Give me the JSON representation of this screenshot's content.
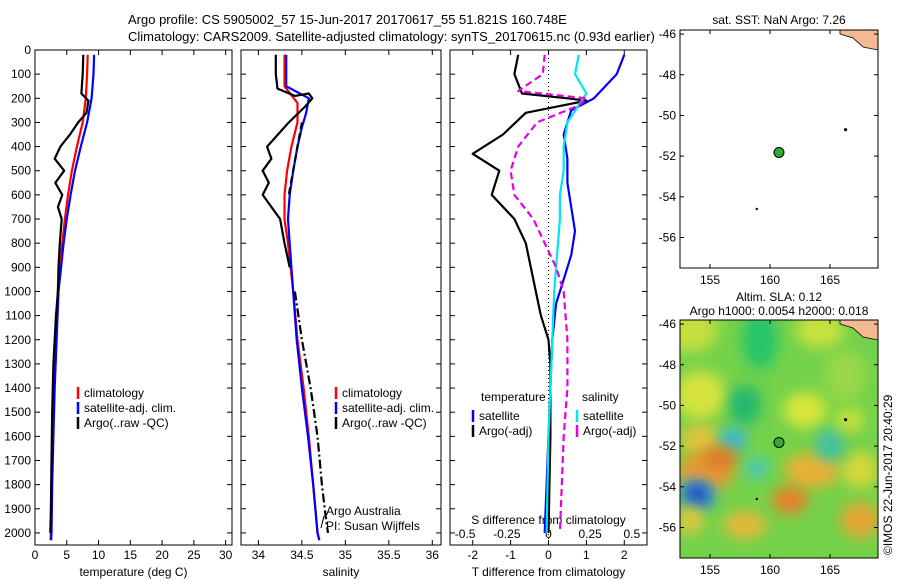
{
  "header": {
    "line1": "Argo profile: CS 5905002_57 15-Jun-2017 20170617_55 51.821S 160.748E",
    "line2": "Climatology: CARS2009. Satellite-adjusted climatology: synTS_20170615.nc (0.93d earlier)"
  },
  "colors": {
    "climatology": "#ff0000",
    "satellite": "#0000ff",
    "argo": "#000000",
    "salinity_satellite": "#00e5ee",
    "salinity_argo": "#e600e6",
    "land": "#f4b990",
    "float_marker": "#33aa33"
  },
  "credit": "©IMOS 22-Jun-2017 20:40:29",
  "chart_data": [
    {
      "id": "temperature",
      "type": "line",
      "xlabel": "temperature (deg C)",
      "xlim": [
        0,
        31
      ],
      "ylim": [
        2050,
        0
      ],
      "xticks": [
        "0",
        "5",
        "10",
        "15",
        "20",
        "25",
        "30"
      ],
      "yticks": [
        "0",
        "100",
        "200",
        "300",
        "400",
        "500",
        "600",
        "700",
        "800",
        "900",
        "1000",
        "1100",
        "1200",
        "1300",
        "1400",
        "1500",
        "1600",
        "1700",
        "1800",
        "1900",
        "2000"
      ],
      "legend": [
        "climatology",
        "satellite-adj. clim.",
        "Argo(..raw -QC)"
      ],
      "series": [
        {
          "name": "climatology",
          "style": "solid",
          "points": [
            [
              8.3,
              20
            ],
            [
              8.2,
              100
            ],
            [
              8.0,
              200
            ],
            [
              7.5,
              300
            ],
            [
              6.6,
              400
            ],
            [
              5.8,
              500
            ],
            [
              5.2,
              600
            ],
            [
              4.7,
              700
            ],
            [
              4.3,
              800
            ],
            [
              3.9,
              900
            ],
            [
              3.6,
              1000
            ],
            [
              3.3,
              1200
            ],
            [
              3.0,
              1400
            ],
            [
              2.8,
              1600
            ],
            [
              2.6,
              1800
            ],
            [
              2.5,
              2000
            ],
            [
              2.45,
              2030
            ]
          ]
        },
        {
          "name": "satellite-adj. clim.",
          "style": "solid",
          "points": [
            [
              9.3,
              20
            ],
            [
              9.2,
              100
            ],
            [
              8.9,
              200
            ],
            [
              8.2,
              300
            ],
            [
              7.2,
              400
            ],
            [
              6.3,
              500
            ],
            [
              5.6,
              600
            ],
            [
              5.0,
              700
            ],
            [
              4.5,
              800
            ],
            [
              4.1,
              900
            ],
            [
              3.7,
              1000
            ],
            [
              3.4,
              1200
            ],
            [
              3.1,
              1400
            ],
            [
              2.9,
              1600
            ],
            [
              2.7,
              1800
            ],
            [
              2.6,
              2000
            ],
            [
              2.55,
              2030
            ]
          ]
        },
        {
          "name": "Argo(..raw -QC)",
          "style": "solid",
          "points": [
            [
              7.6,
              20
            ],
            [
              7.5,
              100
            ],
            [
              7.3,
              180
            ],
            [
              8.4,
              210
            ],
            [
              8.1,
              260
            ],
            [
              6.8,
              300
            ],
            [
              5.5,
              350
            ],
            [
              4.0,
              400
            ],
            [
              3.1,
              450
            ],
            [
              4.6,
              500
            ],
            [
              3.2,
              550
            ],
            [
              4.3,
              600
            ],
            [
              3.6,
              650
            ],
            [
              4.2,
              700
            ],
            [
              3.9,
              800
            ],
            [
              3.7,
              900
            ],
            [
              3.6,
              1000
            ],
            [
              3.3,
              1100
            ],
            [
              3.1,
              1200
            ],
            [
              2.9,
              1300
            ],
            [
              2.8,
              1400
            ],
            [
              2.7,
              1500
            ],
            [
              2.6,
              1700
            ],
            [
              2.5,
              1900
            ],
            [
              2.4,
              2000
            ]
          ]
        }
      ]
    },
    {
      "id": "salinity",
      "type": "line",
      "xlabel": "salinity",
      "xlim": [
        33.8,
        36.1
      ],
      "ylim": [
        2050,
        0
      ],
      "xticks": [
        "34",
        "34.5",
        "35",
        "35.5",
        "36"
      ],
      "legend": [
        "climatology",
        "satellite-adj. clim.",
        "Argo(..raw -QC)"
      ],
      "annotations": [
        "Argo Australia",
        "PI: Susan Wijffels"
      ],
      "series": [
        {
          "name": "climatology",
          "style": "solid",
          "points": [
            [
              34.3,
              20
            ],
            [
              34.3,
              150
            ],
            [
              34.45,
              220
            ],
            [
              34.45,
              300
            ],
            [
              34.38,
              400
            ],
            [
              34.33,
              500
            ],
            [
              34.3,
              600
            ],
            [
              34.3,
              700
            ],
            [
              34.34,
              800
            ],
            [
              34.37,
              900
            ],
            [
              34.4,
              1000
            ],
            [
              34.45,
              1200
            ],
            [
              34.52,
              1400
            ],
            [
              34.58,
              1600
            ],
            [
              34.63,
              1800
            ],
            [
              34.68,
              2000
            ],
            [
              34.7,
              2030
            ]
          ]
        },
        {
          "name": "satellite-adj. clim.",
          "style": "solid",
          "points": [
            [
              34.32,
              20
            ],
            [
              34.32,
              150
            ],
            [
              34.58,
              200
            ],
            [
              34.55,
              260
            ],
            [
              34.5,
              320
            ],
            [
              34.45,
              400
            ],
            [
              34.4,
              500
            ],
            [
              34.36,
              600
            ],
            [
              34.34,
              700
            ],
            [
              34.36,
              800
            ],
            [
              34.38,
              900
            ],
            [
              34.4,
              1000
            ],
            [
              34.44,
              1200
            ],
            [
              34.5,
              1400
            ],
            [
              34.57,
              1600
            ],
            [
              34.63,
              1800
            ],
            [
              34.68,
              2000
            ],
            [
              34.7,
              2030
            ]
          ]
        },
        {
          "name": "Argo(..raw -QC)",
          "style": "solid",
          "points": [
            [
              34.2,
              20
            ],
            [
              34.2,
              100
            ],
            [
              34.22,
              160
            ],
            [
              34.42,
              190
            ],
            [
              34.58,
              180
            ],
            [
              34.62,
              200
            ],
            [
              34.55,
              230
            ],
            [
              34.35,
              300
            ],
            [
              34.1,
              400
            ],
            [
              34.15,
              450
            ],
            [
              34.05,
              500
            ],
            [
              34.12,
              550
            ],
            [
              34.05,
              600
            ],
            [
              34.15,
              650
            ],
            [
              34.25,
              700
            ],
            [
              34.3,
              800
            ],
            [
              34.36,
              900
            ]
          ]
        },
        {
          "name": "Argo(..raw -QC) dash-dot",
          "style": "dashdot",
          "points": [
            [
              34.42,
              1000
            ],
            [
              34.5,
              1200
            ],
            [
              34.6,
              1400
            ],
            [
              34.68,
              1600
            ],
            [
              34.73,
              1800
            ],
            [
              34.78,
              1950
            ],
            [
              34.8,
              2000
            ]
          ]
        },
        {
          "name": "Argo(..raw -QC) dashed",
          "style": "dashed",
          "points": [
            [
              34.5,
              300
            ],
            [
              34.45,
              400
            ],
            [
              34.4,
              500
            ],
            [
              34.35,
              600
            ]
          ]
        }
      ]
    },
    {
      "id": "differences",
      "type": "line",
      "xlabel": "T difference from climatology",
      "xlabel_top": "S difference from climatology",
      "xlim": [
        -2.6,
        2.6
      ],
      "ylim": [
        2050,
        0
      ],
      "xticks": [
        "-2",
        "-1",
        "0",
        "1",
        "2"
      ],
      "xticks_top": [
        "-0.5",
        "-0.25",
        "0",
        "0.25",
        "0.5"
      ],
      "legend_headers": [
        "temperature",
        "salinity"
      ],
      "legend": [
        "satellite",
        "Argo(-adj)",
        "satellite",
        "Argo(-adj)"
      ],
      "series": [
        {
          "name": "temperature satellite",
          "style": "solid",
          "points": [
            [
              2.0,
              20
            ],
            [
              1.8,
              100
            ],
            [
              1.5,
              150
            ],
            [
              1.2,
              200
            ],
            [
              0.6,
              250
            ],
            [
              0.4,
              350
            ],
            [
              0.5,
              450
            ],
            [
              0.5,
              550
            ],
            [
              0.6,
              650
            ],
            [
              0.7,
              750
            ],
            [
              0.6,
              850
            ],
            [
              0.4,
              950
            ],
            [
              0.2,
              1050
            ],
            [
              0.1,
              1200
            ],
            [
              0.05,
              1400
            ],
            [
              0.0,
              1600
            ],
            [
              -0.05,
              1800
            ],
            [
              -0.1,
              2000
            ]
          ]
        },
        {
          "name": "temperature Argo(-adj)",
          "style": "solid",
          "points": [
            [
              -0.8,
              20
            ],
            [
              -0.9,
              100
            ],
            [
              -0.7,
              180
            ],
            [
              0.5,
              200
            ],
            [
              1.0,
              210
            ],
            [
              -0.6,
              260
            ],
            [
              -1.2,
              350
            ],
            [
              -2.0,
              430
            ],
            [
              -1.3,
              500
            ],
            [
              -1.5,
              600
            ],
            [
              -0.9,
              700
            ],
            [
              -0.6,
              800
            ],
            [
              -0.4,
              950
            ],
            [
              -0.2,
              1100
            ],
            [
              0.0,
              1200
            ],
            [
              0.05,
              1300
            ],
            [
              0.05,
              1600
            ],
            [
              0.0,
              2000
            ]
          ]
        },
        {
          "name": "salinity satellite",
          "style": "solid",
          "points": [
            [
              0.8,
              20
            ],
            [
              0.7,
              100
            ],
            [
              1.0,
              180
            ],
            [
              0.5,
              300
            ],
            [
              0.4,
              400
            ],
            [
              0.4,
              500
            ],
            [
              0.3,
              600
            ],
            [
              0.3,
              700
            ],
            [
              0.25,
              800
            ],
            [
              0.2,
              900
            ],
            [
              0.15,
              1000
            ],
            [
              0.1,
              1200
            ],
            [
              0.05,
              1400
            ],
            [
              0.0,
              1600
            ],
            [
              -0.05,
              2000
            ]
          ]
        },
        {
          "name": "salinity Argo(-adj)",
          "style": "dashed",
          "points": [
            [
              -0.1,
              20
            ],
            [
              -0.15,
              100
            ],
            [
              -0.8,
              170
            ],
            [
              1.0,
              200
            ],
            [
              0.8,
              230
            ],
            [
              -0.3,
              300
            ],
            [
              -0.8,
              400
            ],
            [
              -1.0,
              500
            ],
            [
              -0.9,
              600
            ],
            [
              -0.4,
              700
            ],
            [
              -0.1,
              800
            ],
            [
              0.2,
              900
            ],
            [
              0.4,
              1000
            ],
            [
              0.5,
              1200
            ],
            [
              0.5,
              1400
            ],
            [
              0.4,
              1600
            ],
            [
              0.35,
              1800
            ],
            [
              0.3,
              2000
            ]
          ]
        }
      ]
    },
    {
      "id": "sst_map",
      "type": "scatter",
      "title": "sat. SST: NaN Argo: 7.26",
      "xlim": [
        152.5,
        169
      ],
      "ylim": [
        -57.5,
        -45.8
      ],
      "xticks": [
        "155",
        "160",
        "165"
      ],
      "yticks": [
        "-46",
        "-48",
        "-50",
        "-52",
        "-54",
        "-56"
      ],
      "float": {
        "lon": 160.748,
        "lat": -51.821
      }
    },
    {
      "id": "sla_map",
      "type": "heatmap",
      "title": "Altim. SLA: 0.12",
      "subtitle": "Argo h1000: 0.0054 h2000: 0.018",
      "xlim": [
        152.5,
        169
      ],
      "ylim": [
        -57.5,
        -45.8
      ],
      "xticks": [
        "155",
        "160",
        "165"
      ],
      "yticks": [
        "-46",
        "-48",
        "-50",
        "-52",
        "-54",
        "-56"
      ],
      "float": {
        "lon": 160.748,
        "lat": -51.821
      }
    }
  ]
}
